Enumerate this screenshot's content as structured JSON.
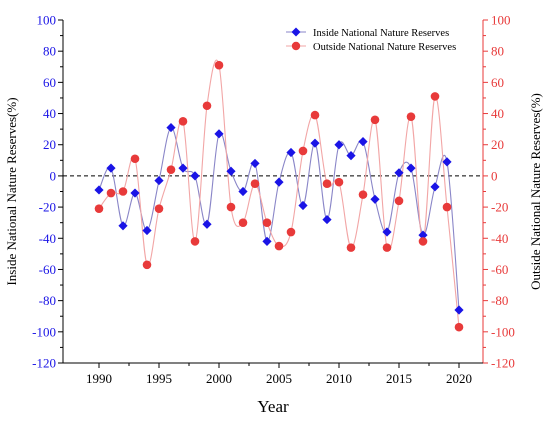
{
  "chart_data": {
    "type": "scatter",
    "title": "",
    "xlabel": "Year",
    "ylabel_left": "Inside National Nature Reserves(%)",
    "ylabel_right": "Outside National Nature Reserves(%)",
    "xlim": [
      1987,
      2022
    ],
    "ylim": [
      -120,
      100
    ],
    "x_ticks": [
      1990,
      1995,
      2000,
      2005,
      2010,
      2015,
      2020
    ],
    "y_ticks": [
      -120,
      -100,
      -80,
      -60,
      -40,
      -20,
      0,
      20,
      40,
      60,
      80,
      100
    ],
    "zero_line": true,
    "grid": false,
    "legend_position": "top-right",
    "x": [
      1990,
      1991,
      1992,
      1993,
      1994,
      1995,
      1996,
      1997,
      1998,
      1999,
      2000,
      2001,
      2002,
      2003,
      2004,
      2005,
      2006,
      2007,
      2008,
      2009,
      2010,
      2011,
      2012,
      2013,
      2014,
      2015,
      2016,
      2017,
      2018,
      2019,
      2020
    ],
    "series": [
      {
        "name": "Inside National Nature Reserves",
        "axis": "left",
        "color": "#1a14e6",
        "line_color": "#8a86c8",
        "marker": "diamond",
        "values": [
          -9,
          5,
          -32,
          -11,
          -35,
          -3,
          31,
          5,
          0,
          -31,
          27,
          3,
          -10,
          8,
          -42,
          -4,
          15,
          -19,
          21,
          -28,
          20,
          13,
          22,
          -15,
          -36,
          2,
          5,
          -38,
          -7,
          9,
          -86
        ]
      },
      {
        "name": "Outside National Nature Reserves",
        "axis": "right",
        "color": "#e83a3a",
        "line_color": "#f2a6a6",
        "marker": "circle",
        "values": [
          -21,
          -11,
          -10,
          11,
          -57,
          -21,
          4,
          35,
          -42,
          45,
          71,
          -20,
          -30,
          -5,
          -30,
          -45,
          -36,
          16,
          39,
          -5,
          -4,
          -46,
          -12,
          36,
          -46,
          -16,
          38,
          -42,
          51,
          -20,
          -97
        ]
      }
    ]
  },
  "colors": {
    "left_axis": "#1a14e6",
    "right_axis": "#e83a3a",
    "axis": "#000000"
  }
}
